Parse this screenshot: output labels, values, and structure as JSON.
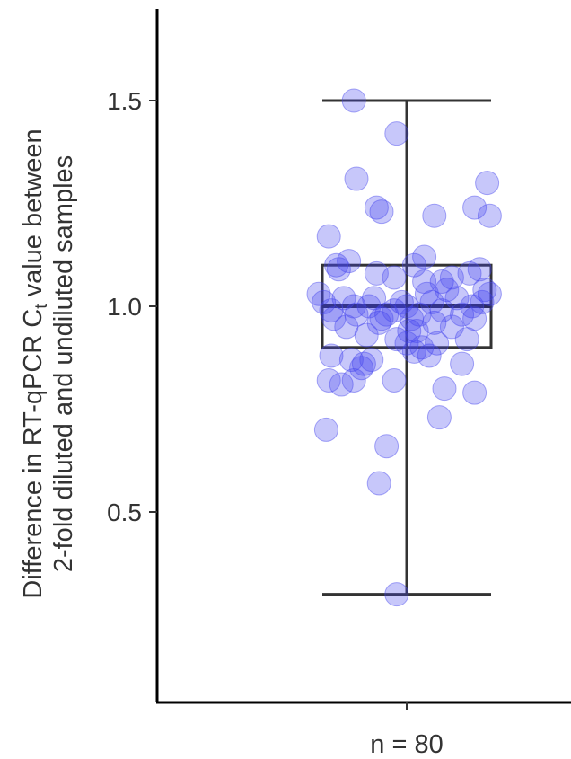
{
  "chart_data": {
    "type": "box",
    "ylabel_line1": "Difference in RT-qPCR C",
    "ylabel_subscript": "t",
    "ylabel_line1_tail": " value between",
    "ylabel_line2": "2-fold diluted and undiluted samples",
    "category_label": "n = 80",
    "yticks": [
      0.5,
      1.0,
      1.5
    ],
    "ytick_labels": [
      "0.5",
      "1.0",
      "1.5"
    ],
    "ylim": [
      0.12,
      1.72
    ],
    "box": {
      "whisker_low": 0.3,
      "q1": 0.9,
      "median": 1.0,
      "q3": 1.1,
      "whisker_high": 1.5
    },
    "point_color": "#4444ee",
    "points": [
      [
        -0.31,
        1.17
      ],
      [
        -0.27,
        1.09
      ],
      [
        -0.23,
        1.11
      ],
      [
        -0.28,
        1.1
      ],
      [
        -0.12,
        1.08
      ],
      [
        -0.05,
        1.07
      ],
      [
        0.03,
        1.1
      ],
      [
        0.07,
        1.12
      ],
      [
        0.14,
        1.06
      ],
      [
        0.18,
        1.07
      ],
      [
        0.25,
        1.08
      ],
      [
        0.29,
        1.09
      ],
      [
        0.31,
        1.04
      ],
      [
        0.33,
        1.03
      ],
      [
        -0.35,
        1.03
      ],
      [
        -0.33,
        1.01
      ],
      [
        -0.3,
        0.99
      ],
      [
        -0.25,
        1.02
      ],
      [
        -0.2,
        0.98
      ],
      [
        -0.15,
        1.0
      ],
      [
        -0.1,
        0.97
      ],
      [
        -0.05,
        0.99
      ],
      [
        0.0,
        1.0
      ],
      [
        0.05,
        0.98
      ],
      [
        0.1,
        1.01
      ],
      [
        0.14,
        0.99
      ],
      [
        0.2,
        1.02
      ],
      [
        0.26,
        1.0
      ],
      [
        0.3,
        1.01
      ],
      [
        -0.08,
        0.98
      ],
      [
        -0.02,
        1.01
      ],
      [
        0.02,
        0.97
      ],
      [
        0.08,
        1.03
      ],
      [
        0.16,
        1.04
      ],
      [
        -0.29,
        0.97
      ],
      [
        -0.21,
        1.0
      ],
      [
        -0.13,
        1.02
      ],
      [
        0.22,
        0.98
      ],
      [
        0.11,
        0.96
      ],
      [
        -0.24,
        0.95
      ],
      [
        -0.16,
        0.93
      ],
      [
        -0.04,
        0.92
      ],
      [
        0.04,
        0.94
      ],
      [
        0.12,
        0.91
      ],
      [
        0.18,
        0.95
      ],
      [
        0.27,
        0.97
      ],
      [
        -0.11,
        0.96
      ],
      [
        0.0,
        0.91
      ],
      [
        0.03,
        0.89
      ],
      [
        0.06,
        0.9
      ],
      [
        0.09,
        0.88
      ],
      [
        0.24,
        0.92
      ],
      [
        0.01,
        0.94
      ],
      [
        -0.3,
        0.88
      ],
      [
        -0.22,
        0.87
      ],
      [
        -0.17,
        0.86
      ],
      [
        -0.14,
        0.87
      ],
      [
        -0.05,
        0.82
      ],
      [
        -0.31,
        0.82
      ],
      [
        -0.26,
        0.81
      ],
      [
        -0.21,
        0.82
      ],
      [
        0.22,
        0.86
      ],
      [
        0.15,
        0.8
      ],
      [
        0.27,
        0.79
      ],
      [
        0.13,
        0.73
      ],
      [
        -0.32,
        0.7
      ],
      [
        -0.08,
        0.66
      ],
      [
        -0.11,
        0.57
      ],
      [
        -0.04,
        0.3
      ],
      [
        -0.21,
        1.5
      ],
      [
        -0.04,
        1.42
      ],
      [
        -0.2,
        1.31
      ],
      [
        -0.12,
        1.24
      ],
      [
        -0.1,
        1.23
      ],
      [
        0.11,
        1.22
      ],
      [
        0.27,
        1.24
      ],
      [
        0.32,
        1.3
      ],
      [
        0.33,
        1.22
      ],
      [
        0.07,
        1.06
      ],
      [
        -0.18,
        0.85
      ]
    ]
  }
}
